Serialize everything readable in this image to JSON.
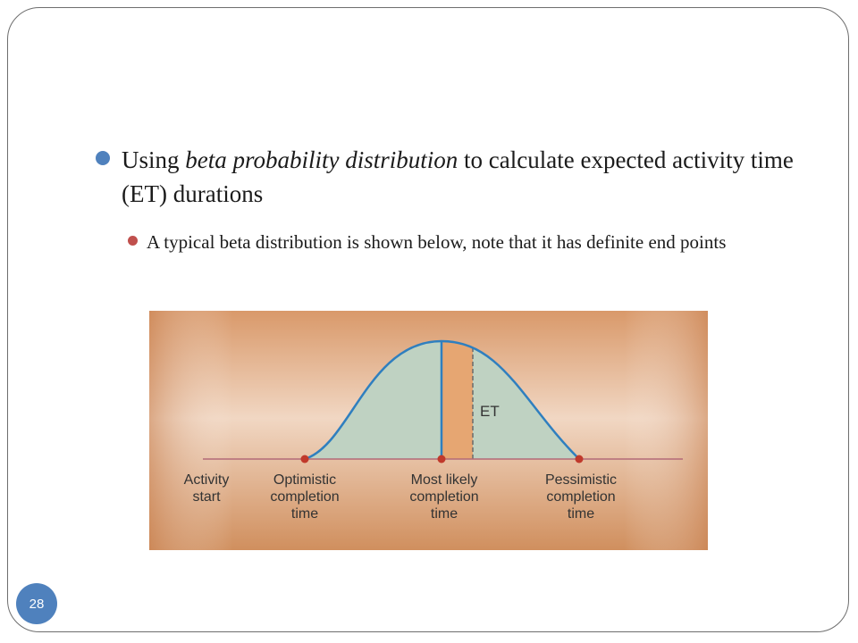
{
  "bullets": {
    "level1": {
      "prefix": "Using ",
      "emphasis": "beta probability distribution",
      "suffix": " to calculate expected activity time (ET) durations"
    },
    "level2": "A typical beta distribution is shown below, note that it has definite end points"
  },
  "diagram": {
    "et_label": "ET",
    "labels": {
      "activity_start": [
        "Activity",
        "start"
      ],
      "optimistic": [
        "Optimistic",
        "completion",
        "time"
      ],
      "most_likely": [
        "Most likely",
        "completion",
        "time"
      ],
      "pessimistic": [
        "Pessimistic",
        "completion",
        "time"
      ]
    },
    "colors": {
      "curve_fill": "#bfd2c2",
      "curve_stroke": "#2f7fbf",
      "et_band": "#e6a672",
      "axis_line": "#b36a78",
      "point": "#c0392b"
    }
  },
  "page_number": "28",
  "theme": {
    "bullet_l1_color": "#4f81bd",
    "bullet_l2_color": "#c0504d",
    "badge_color": "#4f81bd"
  }
}
